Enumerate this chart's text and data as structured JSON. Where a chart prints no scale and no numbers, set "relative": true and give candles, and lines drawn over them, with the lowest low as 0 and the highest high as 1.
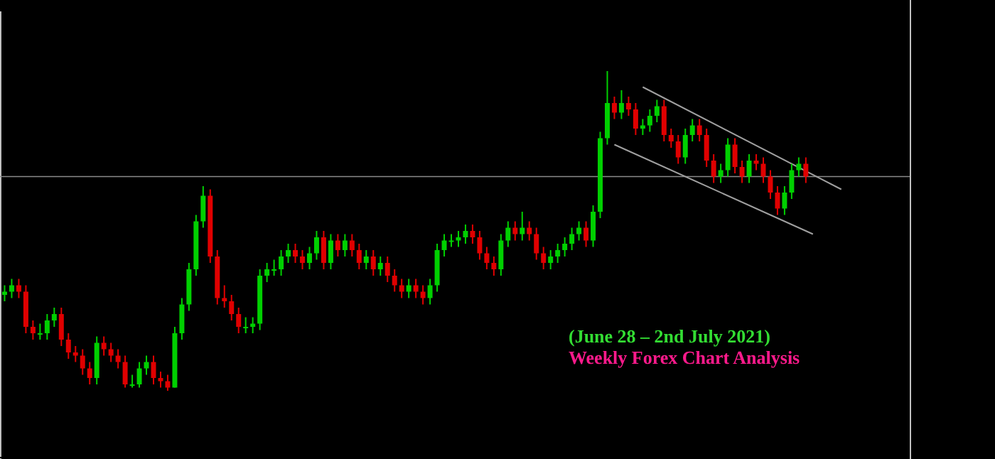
{
  "chart_data": {
    "type": "candlestick",
    "relative": true,
    "annotations": [
      "(June 28 – 2nd July 2021)",
      "Weekly Forex Chart Analysis"
    ],
    "colors": [
      "#00d000",
      "#00d000",
      "#e00000",
      "#e00000",
      "#e00000",
      "#00d000",
      "#00d000",
      "#00d000",
      "#e00000",
      "#e00000",
      "#e00000",
      "#e00000",
      "#e00000",
      "#00d000",
      "#e00000",
      "#e00000",
      "#e00000",
      "#e00000",
      "#00d000",
      "#00d000",
      "#00d000",
      "#e00000",
      "#e00000",
      "#e00000",
      "#00d000",
      "#00d000",
      "#00d000",
      "#00d000",
      "#00d000",
      "#e00000",
      "#e00000",
      "#e00000",
      "#e00000",
      "#e00000",
      "#00d000",
      "#00d000",
      "#00d000",
      "#00d000",
      "#00d000",
      "#00d000",
      "#00d000",
      "#e00000",
      "#e00000",
      "#00d000",
      "#00d000",
      "#e00000",
      "#00d000",
      "#e00000",
      "#00d000",
      "#e00000",
      "#e00000",
      "#00d000",
      "#e00000",
      "#00d000",
      "#e00000",
      "#e00000",
      "#e00000",
      "#00d000",
      "#e00000",
      "#e00000",
      "#00d000",
      "#00d000",
      "#00d000",
      "#00d000",
      "#00d000",
      "#00d000",
      "#e00000",
      "#e00000",
      "#e00000",
      "#e00000",
      "#00d000",
      "#00d000",
      "#e00000",
      "#00d000",
      "#e00000",
      "#e00000",
      "#e00000",
      "#00d000",
      "#00d000",
      "#00d000",
      "#00d000",
      "#00d000",
      "#e00000",
      "#00d000",
      "#00d000",
      "#00d000",
      "#e00000",
      "#00d000",
      "#e00000",
      "#e00000",
      "#00d000",
      "#00d000",
      "#00d000",
      "#e00000",
      "#e00000",
      "#e00000",
      "#00d000",
      "#00d000",
      "#e00000",
      "#e00000",
      "#e00000",
      "#00d000",
      "#00d000",
      "#e00000",
      "#e00000",
      "#00d000",
      "#e00000",
      "#e00000",
      "#e00000",
      "#e00000",
      "#00d000",
      "#00d000",
      "#00d000",
      "#e00000",
      null,
      null,
      null,
      null,
      null,
      null,
      null,
      null,
      null,
      null,
      null,
      null,
      null,
      null
    ],
    "categories": [
      null,
      null,
      null,
      null,
      null,
      null,
      null,
      null,
      null,
      null,
      null,
      null,
      null,
      null,
      null,
      null,
      null,
      null,
      null,
      null,
      null,
      null,
      null,
      null,
      null,
      null,
      null,
      null,
      null,
      null,
      null,
      null,
      null,
      null,
      null,
      null,
      null,
      null,
      null,
      null,
      null,
      null,
      null,
      null,
      null,
      null,
      null,
      null,
      null,
      null,
      null,
      null,
      null,
      null,
      null,
      null,
      null,
      null,
      null,
      null,
      null,
      null,
      null,
      null,
      null,
      null,
      null,
      null,
      null,
      null,
      null,
      null,
      null,
      null,
      null,
      null,
      null,
      null,
      null,
      null,
      null,
      null,
      null,
      null,
      null,
      null,
      null,
      null,
      null,
      null,
      null,
      null,
      null,
      null,
      null,
      null,
      null,
      null,
      null,
      null,
      null,
      null,
      null,
      null,
      null,
      null,
      null,
      null,
      null,
      null,
      null,
      null,
      null,
      null,
      null,
      null,
      null,
      null,
      null,
      null,
      null,
      null,
      null,
      null,
      null,
      null,
      null,
      null
    ],
    "ohlc": [
      [
        0.3,
        0.33,
        0.28,
        0.31
      ],
      [
        0.31,
        0.35,
        0.29,
        0.33
      ],
      [
        0.33,
        0.35,
        0.29,
        0.31
      ],
      [
        0.31,
        0.33,
        0.18,
        0.2
      ],
      [
        0.2,
        0.22,
        0.16,
        0.18
      ],
      [
        0.18,
        0.21,
        0.16,
        0.18
      ],
      [
        0.18,
        0.24,
        0.16,
        0.22
      ],
      [
        0.22,
        0.26,
        0.2,
        0.24
      ],
      [
        0.24,
        0.26,
        0.14,
        0.16
      ],
      [
        0.16,
        0.18,
        0.1,
        0.12
      ],
      [
        0.12,
        0.14,
        0.09,
        0.11
      ],
      [
        0.11,
        0.13,
        0.05,
        0.07
      ],
      [
        0.07,
        0.09,
        0.02,
        0.04
      ],
      [
        0.04,
        0.17,
        0.02,
        0.15
      ],
      [
        0.15,
        0.17,
        0.11,
        0.13
      ],
      [
        0.13,
        0.15,
        0.09,
        0.11
      ],
      [
        0.11,
        0.13,
        0.07,
        0.09
      ],
      [
        0.09,
        0.11,
        0.01,
        0.02
      ],
      [
        0.02,
        0.05,
        0.01,
        0.02
      ],
      [
        0.02,
        0.09,
        0.01,
        0.07
      ],
      [
        0.07,
        0.11,
        0.05,
        0.09
      ],
      [
        0.09,
        0.11,
        0.02,
        0.04
      ],
      [
        0.04,
        0.06,
        0.01,
        0.03
      ],
      [
        0.03,
        0.05,
        0,
        0.01
      ],
      [
        0.01,
        0.2,
        0.01,
        0.18
      ],
      [
        0.18,
        0.29,
        0.16,
        0.27
      ],
      [
        0.27,
        0.4,
        0.25,
        0.38
      ],
      [
        0.38,
        0.55,
        0.36,
        0.53
      ],
      [
        0.53,
        0.64,
        0.51,
        0.61
      ],
      [
        0.61,
        0.63,
        0.4,
        0.42
      ],
      [
        0.42,
        0.44,
        0.27,
        0.29
      ],
      [
        0.29,
        0.33,
        0.26,
        0.28
      ],
      [
        0.28,
        0.3,
        0.22,
        0.24
      ],
      [
        0.24,
        0.26,
        0.18,
        0.2
      ],
      [
        0.2,
        0.23,
        0.18,
        0.2
      ],
      [
        0.2,
        0.23,
        0.18,
        0.21
      ],
      [
        0.21,
        0.38,
        0.19,
        0.36
      ],
      [
        0.36,
        0.4,
        0.34,
        0.38
      ],
      [
        0.38,
        0.41,
        0.36,
        0.38
      ],
      [
        0.38,
        0.44,
        0.36,
        0.42
      ],
      [
        0.42,
        0.46,
        0.4,
        0.44
      ],
      [
        0.44,
        0.46,
        0.4,
        0.42
      ],
      [
        0.42,
        0.44,
        0.38,
        0.4
      ],
      [
        0.4,
        0.45,
        0.38,
        0.43
      ],
      [
        0.43,
        0.5,
        0.41,
        0.48
      ],
      [
        0.48,
        0.5,
        0.38,
        0.4
      ],
      [
        0.4,
        0.49,
        0.38,
        0.47
      ],
      [
        0.47,
        0.49,
        0.42,
        0.44
      ],
      [
        0.44,
        0.49,
        0.42,
        0.47
      ],
      [
        0.47,
        0.49,
        0.42,
        0.44
      ],
      [
        0.44,
        0.46,
        0.38,
        0.4
      ],
      [
        0.4,
        0.44,
        0.38,
        0.42
      ],
      [
        0.42,
        0.44,
        0.36,
        0.38
      ],
      [
        0.38,
        0.42,
        0.36,
        0.4
      ],
      [
        0.4,
        0.42,
        0.34,
        0.36
      ],
      [
        0.36,
        0.38,
        0.31,
        0.33
      ],
      [
        0.33,
        0.35,
        0.29,
        0.31
      ],
      [
        0.31,
        0.35,
        0.29,
        0.33
      ],
      [
        0.33,
        0.35,
        0.29,
        0.31
      ],
      [
        0.31,
        0.33,
        0.27,
        0.29
      ],
      [
        0.29,
        0.35,
        0.27,
        0.33
      ],
      [
        0.33,
        0.46,
        0.31,
        0.44
      ],
      [
        0.44,
        0.49,
        0.42,
        0.47
      ],
      [
        0.47,
        0.49,
        0.45,
        0.47
      ],
      [
        0.47,
        0.5,
        0.45,
        0.48
      ],
      [
        0.48,
        0.52,
        0.46,
        0.5
      ],
      [
        0.5,
        0.52,
        0.46,
        0.48
      ],
      [
        0.48,
        0.5,
        0.41,
        0.43
      ],
      [
        0.43,
        0.45,
        0.38,
        0.4
      ],
      [
        0.4,
        0.42,
        0.36,
        0.38
      ],
      [
        0.38,
        0.49,
        0.36,
        0.47
      ],
      [
        0.47,
        0.53,
        0.45,
        0.51
      ],
      [
        0.51,
        0.53,
        0.47,
        0.49
      ],
      [
        0.49,
        0.56,
        0.47,
        0.51
      ],
      [
        0.51,
        0.53,
        0.47,
        0.49
      ],
      [
        0.49,
        0.51,
        0.41,
        0.43
      ],
      [
        0.43,
        0.45,
        0.38,
        0.4
      ],
      [
        0.4,
        0.44,
        0.38,
        0.42
      ],
      [
        0.42,
        0.46,
        0.4,
        0.44
      ],
      [
        0.44,
        0.48,
        0.42,
        0.46
      ],
      [
        0.46,
        0.51,
        0.44,
        0.49
      ],
      [
        0.49,
        0.53,
        0.47,
        0.51
      ],
      [
        0.51,
        0.53,
        0.45,
        0.47
      ],
      [
        0.47,
        0.58,
        0.45,
        0.56
      ],
      [
        0.56,
        0.81,
        0.54,
        0.79
      ],
      [
        0.79,
        1,
        0.77,
        0.9
      ],
      [
        0.9,
        0.92,
        0.85,
        0.87
      ],
      [
        0.87,
        0.94,
        0.85,
        0.9
      ],
      [
        0.9,
        0.92,
        0.86,
        0.88
      ],
      [
        0.88,
        0.9,
        0.8,
        0.82
      ],
      [
        0.82,
        0.85,
        0.8,
        0.83
      ],
      [
        0.83,
        0.88,
        0.81,
        0.86
      ],
      [
        0.86,
        0.91,
        0.84,
        0.89
      ],
      [
        0.89,
        0.91,
        0.78,
        0.8
      ],
      [
        0.8,
        0.82,
        0.76,
        0.78
      ],
      [
        0.78,
        0.8,
        0.71,
        0.73
      ],
      [
        0.73,
        0.82,
        0.71,
        0.8
      ],
      [
        0.8,
        0.85,
        0.78,
        0.83
      ],
      [
        0.83,
        0.85,
        0.78,
        0.8
      ],
      [
        0.8,
        0.82,
        0.7,
        0.72
      ],
      [
        0.72,
        0.74,
        0.65,
        0.67
      ],
      [
        0.67,
        0.71,
        0.65,
        0.69
      ],
      [
        0.69,
        0.79,
        0.67,
        0.77
      ],
      [
        0.77,
        0.79,
        0.68,
        0.7
      ],
      [
        0.7,
        0.72,
        0.65,
        0.67
      ],
      [
        0.67,
        0.74,
        0.65,
        0.72
      ],
      [
        0.72,
        0.74,
        0.69,
        0.71
      ],
      [
        0.71,
        0.73,
        0.65,
        0.67
      ],
      [
        0.67,
        0.69,
        0.6,
        0.62
      ],
      [
        0.62,
        0.64,
        0.55,
        0.57
      ],
      [
        0.57,
        0.64,
        0.55,
        0.62
      ],
      [
        0.62,
        0.71,
        0.6,
        0.69
      ],
      [
        0.69,
        0.73,
        0.67,
        0.71
      ],
      [
        0.71,
        0.73,
        0.65,
        0.67
      ],
      null,
      null,
      null,
      null,
      null,
      null,
      null,
      null,
      null,
      null,
      null,
      null,
      null,
      null
    ],
    "series": [
      {
        "type": "line",
        "color": "#a0a0a0",
        "values": [
          null,
          null,
          null,
          null,
          null,
          null,
          null,
          null,
          null,
          null,
          null,
          null,
          null,
          null,
          null,
          null,
          null,
          null,
          null,
          null,
          null,
          null,
          null,
          null,
          null,
          null,
          null,
          null,
          null,
          null,
          null,
          null,
          null,
          null,
          null,
          null,
          null,
          null,
          null,
          null,
          null,
          null,
          null,
          null,
          null,
          null,
          null,
          null,
          null,
          null,
          null,
          null,
          null,
          null,
          null,
          null,
          null,
          null,
          null,
          null,
          null,
          null,
          null,
          null,
          null,
          null,
          null,
          null,
          null,
          null,
          null,
          null,
          null,
          null,
          null,
          null,
          null,
          null,
          null,
          null,
          null,
          null,
          null,
          null,
          null,
          null,
          null,
          null,
          null,
          null,
          0.95,
          null,
          null,
          null,
          null,
          null,
          null,
          null,
          null,
          null,
          null,
          null,
          null,
          null,
          null,
          null,
          null,
          null,
          null,
          null,
          null,
          null,
          null,
          null,
          null,
          null,
          null,
          null,
          0.63,
          null,
          null,
          null,
          null,
          null,
          null,
          null,
          null,
          null
        ]
      },
      {
        "type": "line",
        "color": "#a0a0a0",
        "values": [
          null,
          null,
          null,
          null,
          null,
          null,
          null,
          null,
          null,
          null,
          null,
          null,
          null,
          null,
          null,
          null,
          null,
          null,
          null,
          null,
          null,
          null,
          null,
          null,
          null,
          null,
          null,
          null,
          null,
          null,
          null,
          null,
          null,
          null,
          null,
          null,
          null,
          null,
          null,
          null,
          null,
          null,
          null,
          null,
          null,
          null,
          null,
          null,
          null,
          null,
          null,
          null,
          null,
          null,
          null,
          null,
          null,
          null,
          null,
          null,
          null,
          null,
          null,
          null,
          null,
          null,
          null,
          null,
          null,
          null,
          null,
          null,
          null,
          null,
          null,
          null,
          null,
          null,
          null,
          null,
          null,
          null,
          null,
          null,
          null,
          null,
          0.77,
          null,
          null,
          null,
          null,
          null,
          null,
          null,
          null,
          null,
          null,
          null,
          null,
          null,
          null,
          null,
          null,
          null,
          null,
          null,
          null,
          null,
          null,
          null,
          null,
          null,
          null,
          null,
          0.49,
          null,
          null,
          null,
          null,
          null,
          null,
          null,
          null,
          null,
          null,
          null,
          null,
          null
        ]
      }
    ],
    "ref_lines": [
      {
        "axis": "y",
        "value": 0.67,
        "color": "#8a8a8a"
      }
    ]
  }
}
